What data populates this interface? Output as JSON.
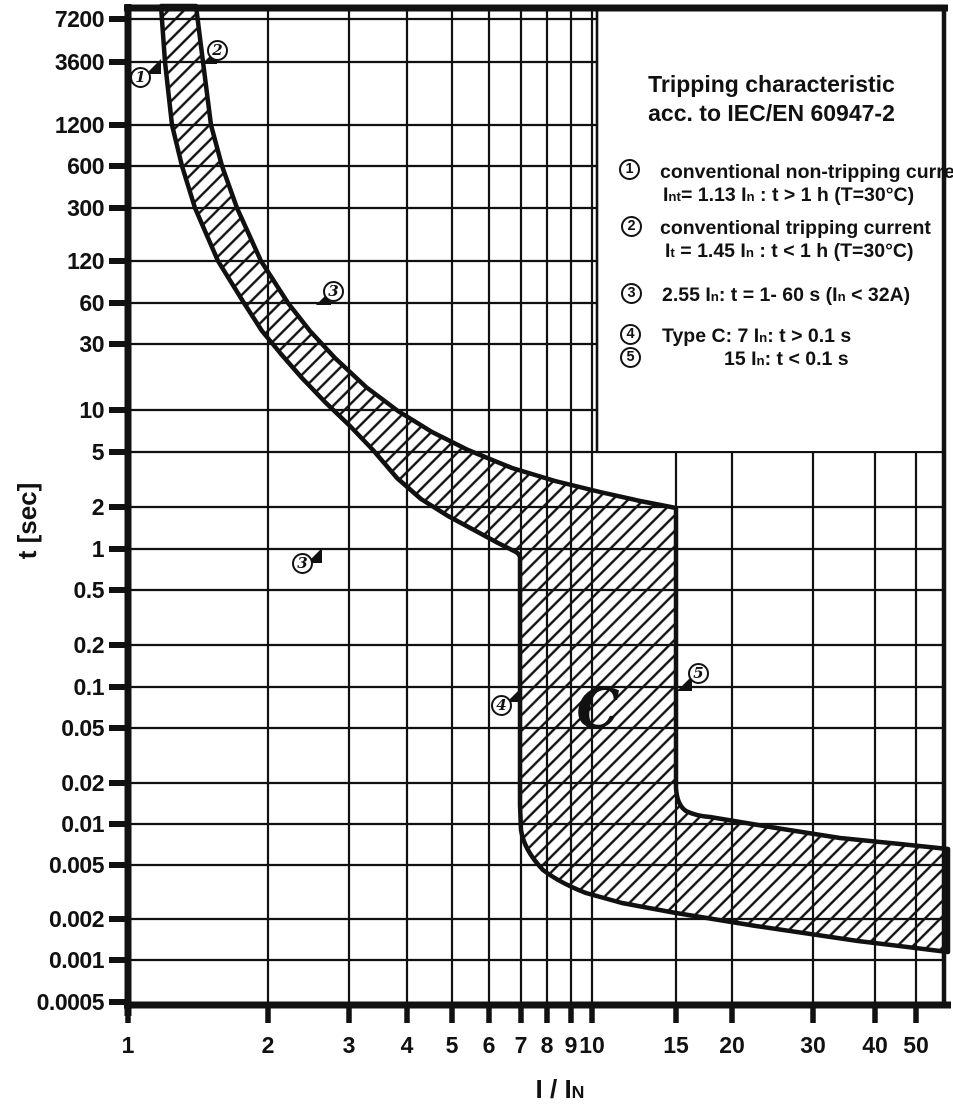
{
  "curve_label": "C",
  "legend": {
    "title_line1": "Tripping characteristic",
    "title_line2": "acc. to IEC/EN 60947-2",
    "items": [
      {
        "num": "1",
        "line1": "conventional non-tripping current",
        "line2_runs": [
          {
            "t": "I"
          },
          {
            "s": "nt"
          },
          {
            "t": "= 1.13 I"
          },
          {
            "s": "n"
          },
          {
            "t": " : t > 1 h   (T=30°C)"
          }
        ]
      },
      {
        "num": "2",
        "line1": "conventional tripping current",
        "line2_runs": [
          {
            "t": "I"
          },
          {
            "s": "t"
          },
          {
            "t": " = 1.45 I"
          },
          {
            "s": "n"
          },
          {
            "t": " : t < 1 h   (T=30°C)"
          }
        ]
      },
      {
        "num": "3",
        "runs": [
          {
            "t": "2.55 I"
          },
          {
            "s": "n"
          },
          {
            "t": ": t = 1- 60 s (I"
          },
          {
            "s": "n"
          },
          {
            "t": " < 32A)"
          }
        ]
      },
      {
        "num": "4",
        "runs": [
          {
            "t": "Type C:  7 I"
          },
          {
            "s": "n"
          },
          {
            "t": ": t > 0.1 s"
          }
        ]
      },
      {
        "num": "5",
        "runs": [
          {
            "t": "15 I"
          },
          {
            "s": "n"
          },
          {
            "t": ": t < 0.1 s"
          }
        ]
      }
    ]
  },
  "axes": {
    "y": {
      "label": "t [sec]",
      "ticks": [
        "7200",
        "3600",
        "1200",
        "600",
        "300",
        "120",
        "60",
        "30",
        "10",
        "5",
        "2",
        "1",
        "0.5",
        "0.2",
        "0.1",
        "0.05",
        "0.02",
        "0.01",
        "0.005",
        "0.002",
        "0.001",
        "0.0005"
      ]
    },
    "x": {
      "label_runs": [
        {
          "t": "I / I"
        },
        {
          "s": "N"
        }
      ],
      "ticks": [
        "1",
        "2",
        "3",
        "4",
        "5",
        "6",
        "7",
        "8",
        "9",
        "10",
        "15",
        "20",
        "30",
        "40",
        "50"
      ]
    }
  },
  "markers": {
    "chart": [
      {
        "num": "1"
      },
      {
        "num": "2"
      },
      {
        "num": "3"
      },
      {
        "num": "3"
      },
      {
        "num": "4"
      },
      {
        "num": "5"
      }
    ]
  },
  "chart_data": {
    "type": "area",
    "title": "Tripping characteristic acc. to IEC/EN 60947-2",
    "xlabel": "I / IN",
    "ylabel": "t [sec]",
    "x_scale": "log",
    "y_scale": "log",
    "xlim": [
      1,
      57
    ],
    "ylim": [
      0.0005,
      9000
    ],
    "x_ticks": [
      1,
      2,
      3,
      4,
      5,
      6,
      7,
      8,
      9,
      10,
      15,
      20,
      30,
      40,
      50
    ],
    "y_ticks": [
      7200,
      3600,
      1200,
      600,
      300,
      120,
      60,
      30,
      10,
      5,
      2,
      1,
      0.5,
      0.2,
      0.1,
      0.05,
      0.02,
      0.01,
      0.005,
      0.002,
      0.001,
      0.0005
    ],
    "grid": true,
    "band_fill": "diagonal-hatch",
    "series": [
      {
        "name": "lower boundary / conventional non-tripping (1.13 In) -> 7 In instantaneous",
        "points_I_t": [
          [
            1.18,
            8800
          ],
          [
            1.21,
            3600
          ],
          [
            1.26,
            1200
          ],
          [
            1.31,
            600
          ],
          [
            1.39,
            300
          ],
          [
            1.56,
            120
          ],
          [
            1.78,
            60
          ],
          [
            1.94,
            38
          ],
          [
            2.14,
            26
          ],
          [
            2.37,
            17.5
          ],
          [
            2.66,
            11.7
          ],
          [
            3.0,
            7.8
          ],
          [
            3.37,
            5.2
          ],
          [
            3.8,
            3.2
          ],
          [
            4.28,
            2.3
          ],
          [
            4.9,
            1.7
          ],
          [
            5.58,
            1.35
          ],
          [
            6.28,
            1.1
          ],
          [
            7.0,
            0.95
          ],
          [
            7.0,
            0.013
          ],
          [
            7.3,
            0.006
          ],
          [
            7.8,
            0.0044
          ],
          [
            8.6,
            0.0035
          ],
          [
            9.7,
            0.003
          ],
          [
            11.7,
            0.0025
          ],
          [
            15,
            0.0021
          ],
          [
            22.5,
            0.0017
          ],
          [
            37.5,
            0.0013
          ],
          [
            57,
            0.0011
          ]
        ]
      },
      {
        "name": "upper boundary / conventional tripping (1.45 In) -> 15 In instantaneous",
        "points_I_t": [
          [
            1.4,
            8800
          ],
          [
            1.45,
            3600
          ],
          [
            1.51,
            1200
          ],
          [
            1.6,
            600
          ],
          [
            1.72,
            300
          ],
          [
            1.94,
            120
          ],
          [
            2.21,
            60
          ],
          [
            2.47,
            38
          ],
          [
            2.79,
            24.5
          ],
          [
            3.26,
            15
          ],
          [
            3.82,
            10
          ],
          [
            4.52,
            7.0
          ],
          [
            5.41,
            5.1
          ],
          [
            6.73,
            3.8
          ],
          [
            8.33,
            3.1
          ],
          [
            10.4,
            2.5
          ],
          [
            12.7,
            2.2
          ],
          [
            15,
            2.0
          ],
          [
            15,
            0.017
          ],
          [
            16.3,
            0.011
          ],
          [
            17.4,
            0.0105
          ],
          [
            24,
            0.0088
          ],
          [
            34,
            0.0073
          ],
          [
            46,
            0.0066
          ],
          [
            57,
            0.0061
          ]
        ]
      }
    ],
    "annotations": [
      {
        "num": "1",
        "I": 1.13,
        "t": 3600
      },
      {
        "num": "2",
        "I": 1.45,
        "t": 3600
      },
      {
        "num": "3",
        "I": 2.55,
        "t": 60
      },
      {
        "num": "3",
        "I": 2.55,
        "t": 1
      },
      {
        "num": "4",
        "I": 7,
        "t": 0.1
      },
      {
        "num": "5",
        "I": 15,
        "t": 0.1
      },
      {
        "label": "C",
        "I": 10,
        "t": 0.07
      }
    ],
    "legend_position": "upper right inside plot"
  }
}
